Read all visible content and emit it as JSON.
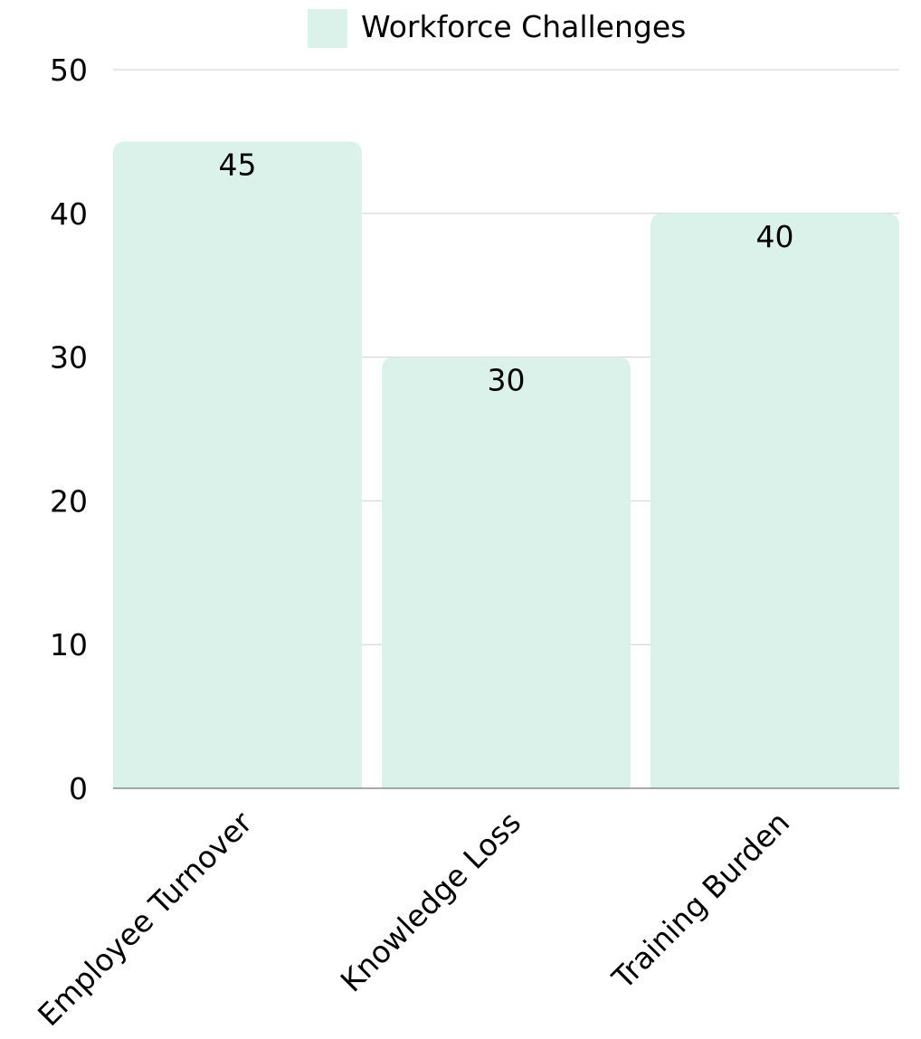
{
  "chart_data": {
    "type": "bar",
    "title": "",
    "xlabel": "",
    "ylabel": "",
    "categories": [
      "Employee Turnover",
      "Knowledge Loss",
      "Training Burden"
    ],
    "series": [
      {
        "name": "Workforce Challenges",
        "values": [
          45,
          30,
          40
        ],
        "color": "#dbf2ea"
      }
    ],
    "ylim": [
      0,
      50
    ],
    "yticks": [
      0,
      10,
      20,
      30,
      40,
      50
    ],
    "grid": true,
    "legend_position": "top-center",
    "data_labels": true
  }
}
